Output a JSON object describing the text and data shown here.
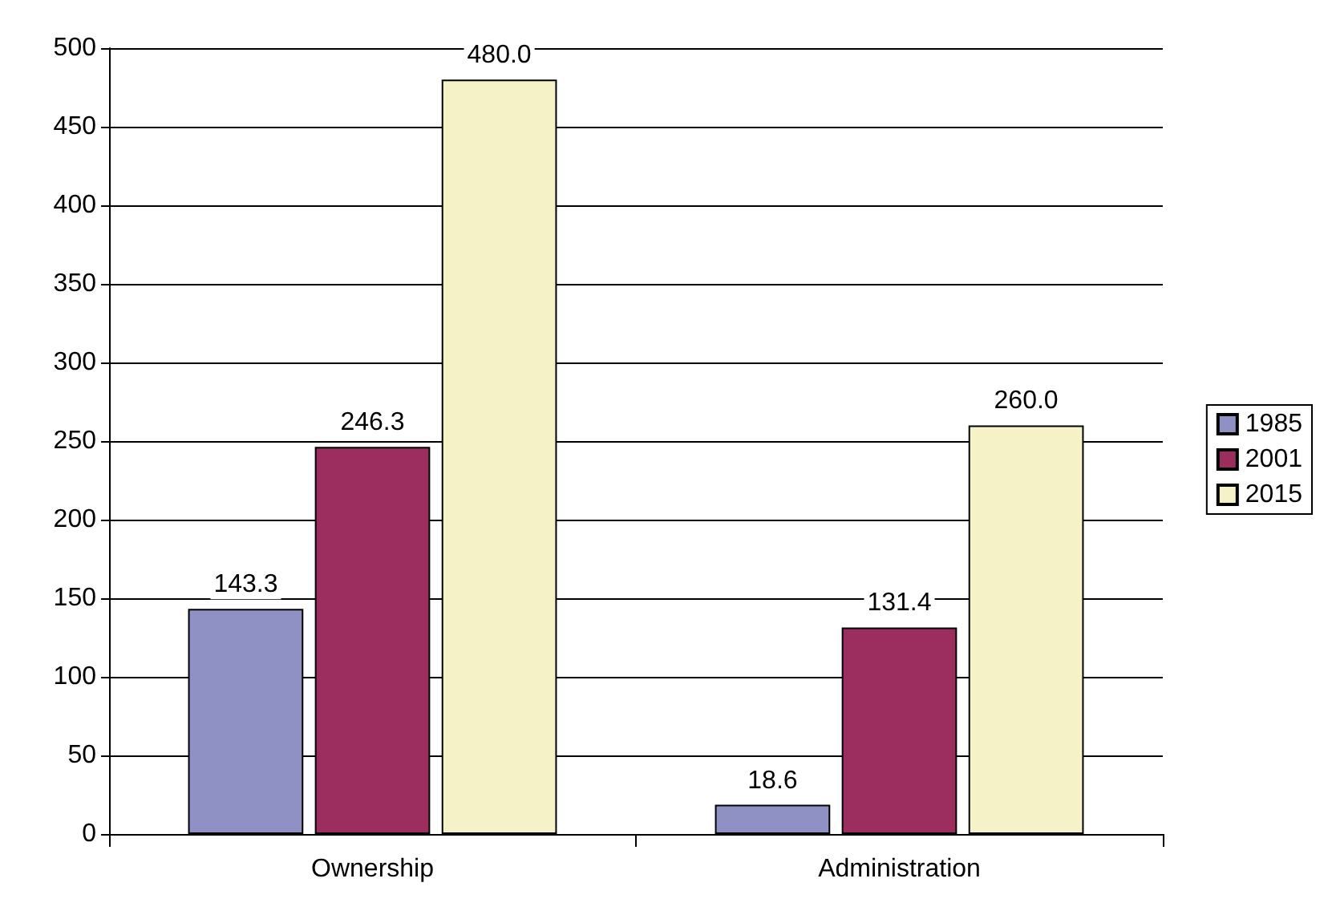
{
  "chart_data": {
    "type": "bar",
    "categories": [
      "Ownership",
      "Administration"
    ],
    "series": [
      {
        "name": "1985",
        "color": "#8f90c3",
        "values": [
          143.3,
          18.6
        ],
        "value_labels": [
          "143.3",
          "18.6"
        ]
      },
      {
        "name": "2001",
        "color": "#9b2d5f",
        "values": [
          246.3,
          131.4
        ],
        "value_labels": [
          "246.3",
          "131.4"
        ]
      },
      {
        "name": "2015",
        "color": "#f6f2c8",
        "values": [
          480.0,
          260.0
        ],
        "value_labels": [
          "480.0",
          "260.0"
        ]
      }
    ],
    "ylim": [
      0,
      500
    ],
    "yticks": [
      0,
      50,
      100,
      150,
      200,
      250,
      300,
      350,
      400,
      450,
      500
    ],
    "grid": "y",
    "legend": "right"
  }
}
